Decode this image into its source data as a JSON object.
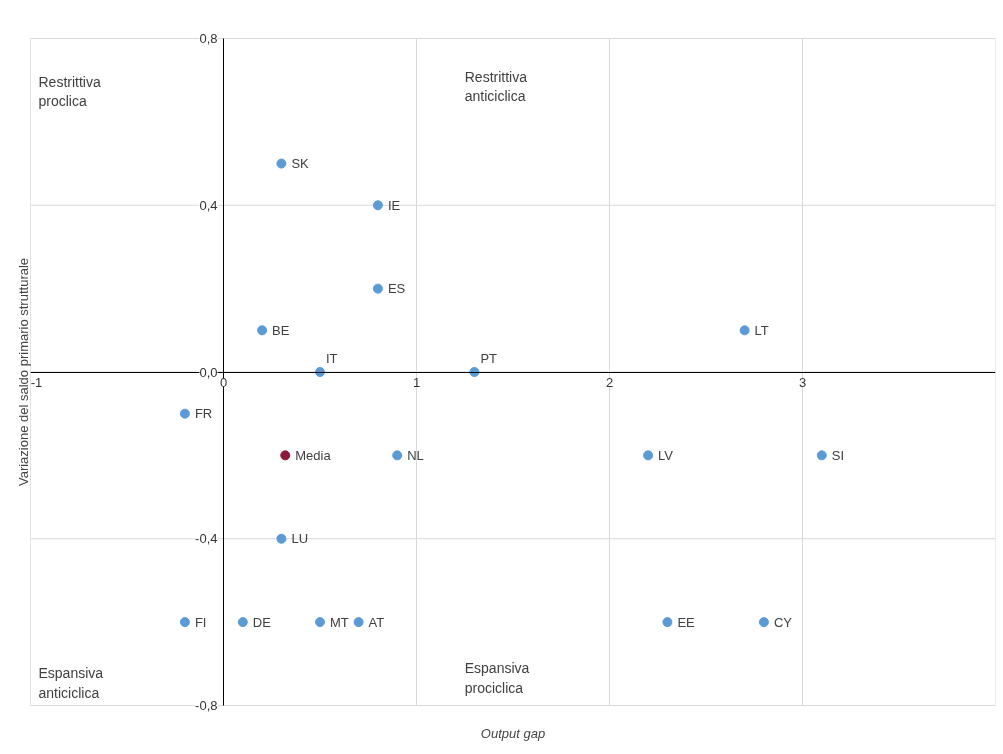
{
  "chart_data": {
    "type": "scatter",
    "xlabel": "Output gap",
    "ylabel": "Variazione del saldo primario strutturale",
    "xlim": [
      -1,
      4
    ],
    "ylim": [
      -0.8,
      0.8
    ],
    "xticks": [
      -1,
      0,
      1,
      2,
      3
    ],
    "yticks": [
      {
        "value": -0.8,
        "label": "-0,8"
      },
      {
        "value": -0.4,
        "label": "-0,4"
      },
      {
        "value": 0,
        "label": "0,0"
      },
      {
        "value": 0.4,
        "label": "0,4"
      },
      {
        "value": 0.8,
        "label": "0,8"
      }
    ],
    "grid": true,
    "legend": false,
    "marker": "circle",
    "annotations": [
      "Restrittiva\nproclica",
      "Restrittiva\nanticiclica",
      "Espansiva\nanticiclica",
      "Espansiva\nprociclica"
    ],
    "series": [
      {
        "name": "SK",
        "color": "#5b9bd5",
        "x": [
          0.3
        ],
        "values": [
          0.5
        ]
      },
      {
        "name": "IE",
        "color": "#5b9bd5",
        "x": [
          0.8
        ],
        "values": [
          0.4
        ]
      },
      {
        "name": "ES",
        "color": "#5b9bd5",
        "x": [
          0.8
        ],
        "values": [
          0.2
        ]
      },
      {
        "name": "BE",
        "color": "#5b9bd5",
        "x": [
          0.2
        ],
        "values": [
          0.1
        ]
      },
      {
        "name": "LT",
        "color": "#5b9bd5",
        "x": [
          2.7
        ],
        "values": [
          0.1
        ]
      },
      {
        "name": "IT",
        "color": "#5b9bd5",
        "x": [
          0.5
        ],
        "values": [
          0.0
        ]
      },
      {
        "name": "PT",
        "color": "#5b9bd5",
        "x": [
          1.3
        ],
        "values": [
          0.0
        ]
      },
      {
        "name": "FR",
        "color": "#5b9bd5",
        "x": [
          -0.2
        ],
        "values": [
          -0.1
        ]
      },
      {
        "name": "Media",
        "color": "#8b1a3a",
        "x": [
          0.32
        ],
        "values": [
          -0.2
        ]
      },
      {
        "name": "NL",
        "color": "#5b9bd5",
        "x": [
          0.9
        ],
        "values": [
          -0.2
        ]
      },
      {
        "name": "LV",
        "color": "#5b9bd5",
        "x": [
          2.2
        ],
        "values": [
          -0.2
        ]
      },
      {
        "name": "SI",
        "color": "#5b9bd5",
        "x": [
          3.1
        ],
        "values": [
          -0.2
        ]
      },
      {
        "name": "LU",
        "color": "#5b9bd5",
        "x": [
          0.3
        ],
        "values": [
          -0.4
        ]
      },
      {
        "name": "FI",
        "color": "#5b9bd5",
        "x": [
          -0.2
        ],
        "values": [
          -0.6
        ]
      },
      {
        "name": "DE",
        "color": "#5b9bd5",
        "x": [
          0.1
        ],
        "values": [
          -0.6
        ]
      },
      {
        "name": "MT",
        "color": "#5b9bd5",
        "x": [
          0.5
        ],
        "values": [
          -0.6
        ]
      },
      {
        "name": "AT",
        "color": "#5b9bd5",
        "x": [
          0.7
        ],
        "values": [
          -0.6
        ]
      },
      {
        "name": "EE",
        "color": "#5b9bd5",
        "x": [
          2.3
        ],
        "values": [
          -0.6
        ]
      },
      {
        "name": "CY",
        "color": "#5b9bd5",
        "x": [
          2.8
        ],
        "values": [
          -0.6
        ]
      }
    ]
  }
}
